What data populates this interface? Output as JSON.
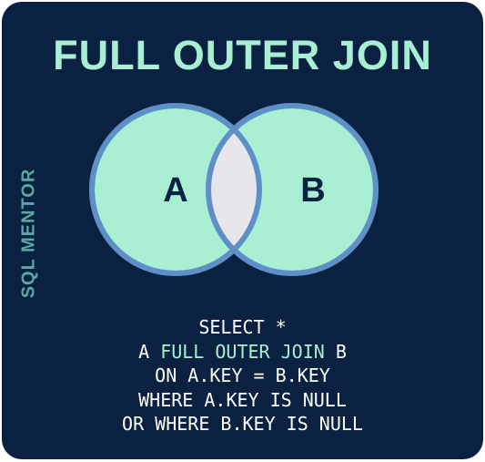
{
  "title": "FULL OUTER JOIN",
  "side_label": "SQL MENTOR",
  "venn": {
    "left_label": "A",
    "right_label": "B",
    "fill_color": "#a8efd3",
    "stroke_color": "#5e8fc7",
    "intersection_color": "#e6e6eb",
    "background_color": "#0b2141"
  },
  "query": {
    "line1": "SELECT *",
    "line2_prefix": "A ",
    "line2_keyword": "FULL OUTER JOIN",
    "line2_suffix": " B",
    "line3": "ON A.KEY = B.KEY",
    "line4": "WHERE A.KEY IS NULL",
    "line5": "OR WHERE B.KEY IS NULL"
  }
}
